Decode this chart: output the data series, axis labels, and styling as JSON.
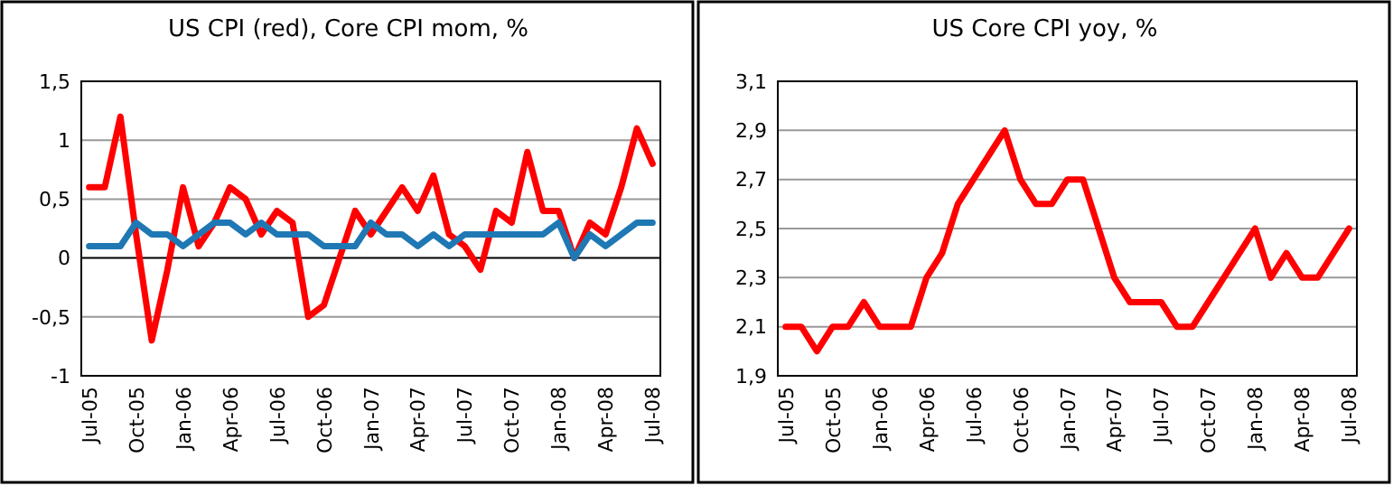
{
  "chart_data": [
    {
      "type": "line",
      "title": "US CPI (red), Core CPI mom, %",
      "categories": [
        "Jul-05",
        null,
        null,
        "Oct-05",
        null,
        null,
        "Jan-06",
        null,
        null,
        "Apr-06",
        null,
        null,
        "Jul-06",
        null,
        null,
        "Oct-06",
        null,
        null,
        "Jan-07",
        null,
        null,
        "Apr-07",
        null,
        null,
        "Jul-07",
        null,
        null,
        "Oct-07",
        null,
        null,
        "Jan-08",
        null,
        null,
        "Apr-08",
        null,
        null,
        "Jul-08"
      ],
      "series": [
        {
          "color": "#ff0000",
          "values": [
            0.6,
            0.6,
            1.2,
            0.2,
            -0.7,
            -0.1,
            0.6,
            0.1,
            0.3,
            0.6,
            0.5,
            0.2,
            0.4,
            0.3,
            -0.5,
            -0.4,
            0.0,
            0.4,
            0.2,
            0.4,
            0.6,
            0.4,
            0.7,
            0.2,
            0.1,
            -0.1,
            0.4,
            0.3,
            0.9,
            0.4,
            0.4,
            0.0,
            0.3,
            0.2,
            0.6,
            1.1,
            0.8
          ]
        },
        {
          "color": "#1f78b4",
          "values": [
            0.1,
            0.1,
            0.1,
            0.3,
            0.2,
            0.2,
            0.1,
            0.2,
            0.3,
            0.3,
            0.2,
            0.3,
            0.2,
            0.2,
            0.2,
            0.1,
            0.1,
            0.1,
            0.3,
            0.2,
            0.2,
            0.1,
            0.2,
            0.1,
            0.2,
            0.2,
            0.2,
            0.2,
            0.2,
            0.2,
            0.3,
            0.0,
            0.2,
            0.1,
            0.2,
            0.3,
            0.3
          ]
        }
      ],
      "ylim": [
        -1,
        1.5
      ],
      "yticks": [
        -1,
        {
          "value": -0.5,
          "label": "-0,5"
        },
        0,
        {
          "value": 0.5,
          "label": "0,5"
        },
        1,
        {
          "value": 1.5,
          "label": "1,5"
        }
      ],
      "grid": "y"
    },
    {
      "type": "line",
      "title": "US Core CPI yoy, %",
      "categories": [
        "Jul-05",
        null,
        null,
        "Oct-05",
        null,
        null,
        "Jan-06",
        null,
        null,
        "Apr-06",
        null,
        null,
        "Jul-06",
        null,
        null,
        "Oct-06",
        null,
        null,
        "Jan-07",
        null,
        null,
        "Apr-07",
        null,
        null,
        "Jul-07",
        null,
        null,
        "Oct-07",
        null,
        null,
        "Jan-08",
        null,
        null,
        "Apr-08",
        null,
        null,
        "Jul-08"
      ],
      "series": [
        {
          "color": "#ff0000",
          "values": [
            2.1,
            2.1,
            2.0,
            2.1,
            2.1,
            2.2,
            2.1,
            2.1,
            2.1,
            2.3,
            2.4,
            2.6,
            2.7,
            2.8,
            2.9,
            2.7,
            2.6,
            2.6,
            2.7,
            2.7,
            2.5,
            2.3,
            2.2,
            2.2,
            2.2,
            2.1,
            2.1,
            2.2,
            2.3,
            2.4,
            2.5,
            2.3,
            2.4,
            2.3,
            2.3,
            2.4,
            2.5
          ]
        }
      ],
      "ylim": [
        1.9,
        3.1
      ],
      "yticks": [
        {
          "value": 1.9,
          "label": "1,9"
        },
        {
          "value": 2.1,
          "label": "2,1"
        },
        {
          "value": 2.3,
          "label": "2,3"
        },
        {
          "value": 2.5,
          "label": "2,5"
        },
        {
          "value": 2.7,
          "label": "2,7"
        },
        {
          "value": 2.9,
          "label": "2,9"
        },
        {
          "value": 3.1,
          "label": "3,1"
        }
      ],
      "grid": "y"
    }
  ]
}
